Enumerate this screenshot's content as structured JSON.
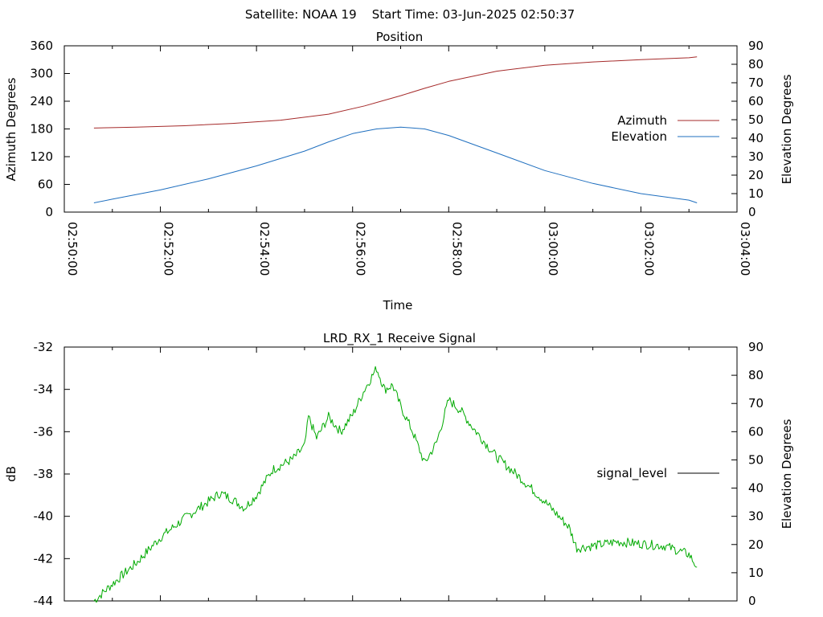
{
  "header": {
    "text": "Satellite: NOAA 19    Start Time: 03-Jun-2025 02:50:37"
  },
  "colors": {
    "azimuth": "#a52a2a",
    "elevation": "#1f6fbf",
    "signal": "#00aa00",
    "legend_signal": "#000000"
  },
  "chart_data": [
    {
      "type": "line",
      "title": "Position",
      "xlabel": "Time",
      "ylabel": "Azimuth Degrees",
      "y2label": "Elevation Degrees",
      "xlim": [
        "02:50:00",
        "03:04:00"
      ],
      "ylim": [
        0,
        360
      ],
      "y2lim": [
        0,
        90
      ],
      "x_ticks": [
        "02:50:00",
        "02:52:00",
        "02:54:00",
        "02:56:00",
        "02:58:00",
        "03:00:00",
        "03:02:00",
        "03:04:00"
      ],
      "y_ticks": [
        0,
        60,
        120,
        180,
        240,
        300,
        360
      ],
      "y2_ticks": [
        0,
        10,
        20,
        30,
        40,
        50,
        60,
        70,
        80,
        90
      ],
      "legend_position": "right",
      "grid": false,
      "series": [
        {
          "name": "Azimuth",
          "axis": "y",
          "x": [
            "02:50:37",
            "02:51:30",
            "02:52:30",
            "02:53:30",
            "02:54:30",
            "02:55:30",
            "02:56:15",
            "02:57:00",
            "02:57:30",
            "02:58:00",
            "02:59:00",
            "03:00:00",
            "03:01:00",
            "03:02:00",
            "03:03:00",
            "03:03:10"
          ],
          "values": [
            182,
            184,
            187,
            192,
            199,
            212,
            230,
            252,
            268,
            283,
            305,
            318,
            325,
            330,
            334,
            336
          ]
        },
        {
          "name": "Elevation",
          "axis": "y2",
          "x": [
            "02:50:37",
            "02:51:00",
            "02:52:00",
            "02:53:00",
            "02:54:00",
            "02:55:00",
            "02:55:30",
            "02:56:00",
            "02:56:30",
            "02:57:00",
            "02:57:30",
            "02:58:00",
            "02:59:00",
            "03:00:00",
            "03:01:00",
            "03:02:00",
            "03:03:00",
            "03:03:10"
          ],
          "values": [
            5,
            7,
            12,
            18,
            25,
            33,
            38,
            42.5,
            45,
            46,
            45,
            41.5,
            32,
            22.5,
            15.5,
            10,
            6.5,
            5
          ]
        }
      ]
    },
    {
      "type": "line",
      "title": "LRD_RX_1 Receive Signal",
      "xlabel": "",
      "ylabel": "dB",
      "y2label": "Elevation Degrees",
      "xlim": [
        "02:50:00",
        "03:04:00"
      ],
      "ylim": [
        -44,
        -32
      ],
      "y2lim": [
        0,
        90
      ],
      "y_ticks": [
        -44,
        -42,
        -40,
        -38,
        -36,
        -34,
        -32
      ],
      "y2_ticks": [
        0,
        10,
        20,
        30,
        40,
        50,
        60,
        70,
        80,
        90
      ],
      "legend_position": "right",
      "grid": false,
      "series": [
        {
          "name": "signal_level",
          "axis": "y",
          "x": [
            "02:50:37",
            "02:51:00",
            "02:51:30",
            "02:52:00",
            "02:52:30",
            "02:53:00",
            "02:53:15",
            "02:53:30",
            "02:53:45",
            "02:54:00",
            "02:54:20",
            "02:54:45",
            "02:55:00",
            "02:55:05",
            "02:55:15",
            "02:55:30",
            "02:55:45",
            "02:56:00",
            "02:56:15",
            "02:56:30",
            "02:56:40",
            "02:56:50",
            "02:57:00",
            "02:57:15",
            "02:57:30",
            "02:57:45",
            "02:58:00",
            "02:58:15",
            "02:58:30",
            "02:59:00",
            "02:59:30",
            "03:00:00",
            "03:00:30",
            "03:00:40",
            "03:01:00",
            "03:01:30",
            "03:02:00",
            "03:02:30",
            "03:03:00",
            "03:03:10"
          ],
          "values": [
            -44.0,
            -43.2,
            -42.2,
            -41.0,
            -40.1,
            -39.3,
            -38.9,
            -39.2,
            -39.6,
            -39.0,
            -37.8,
            -37.3,
            -36.7,
            -35.3,
            -36.3,
            -35.3,
            -36.0,
            -35.2,
            -34.0,
            -33.0,
            -34.0,
            -33.8,
            -34.8,
            -36.0,
            -37.5,
            -36.5,
            -34.5,
            -35.0,
            -35.8,
            -37.2,
            -38.2,
            -39.3,
            -40.5,
            -41.5,
            -41.4,
            -41.2,
            -41.3,
            -41.4,
            -41.8,
            -42.4
          ]
        }
      ]
    }
  ]
}
